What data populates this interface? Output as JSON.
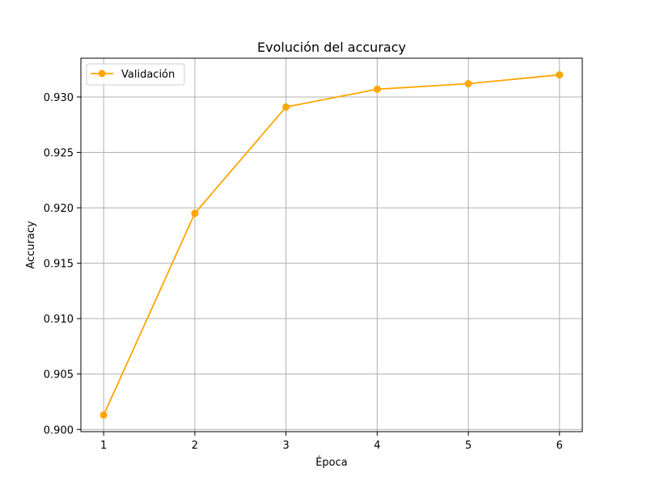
{
  "chart_data": {
    "type": "line",
    "title": "Evolución del accuracy",
    "xlabel": "Época",
    "ylabel": "Accuracy",
    "x": [
      1,
      2,
      3,
      4,
      5,
      6
    ],
    "xticks": [
      "1",
      "2",
      "3",
      "4",
      "5",
      "6"
    ],
    "yticks": [
      "0.900",
      "0.905",
      "0.910",
      "0.915",
      "0.920",
      "0.925",
      "0.930"
    ],
    "xlim": [
      0.75,
      6.25
    ],
    "ylim": [
      0.8998,
      0.9335
    ],
    "grid": true,
    "legend_position": "upper-left",
    "series": [
      {
        "name": "Validación",
        "color": "#ffa500",
        "marker": "circle",
        "values": [
          0.9013,
          0.9195,
          0.9291,
          0.9307,
          0.9312,
          0.932
        ]
      }
    ]
  }
}
